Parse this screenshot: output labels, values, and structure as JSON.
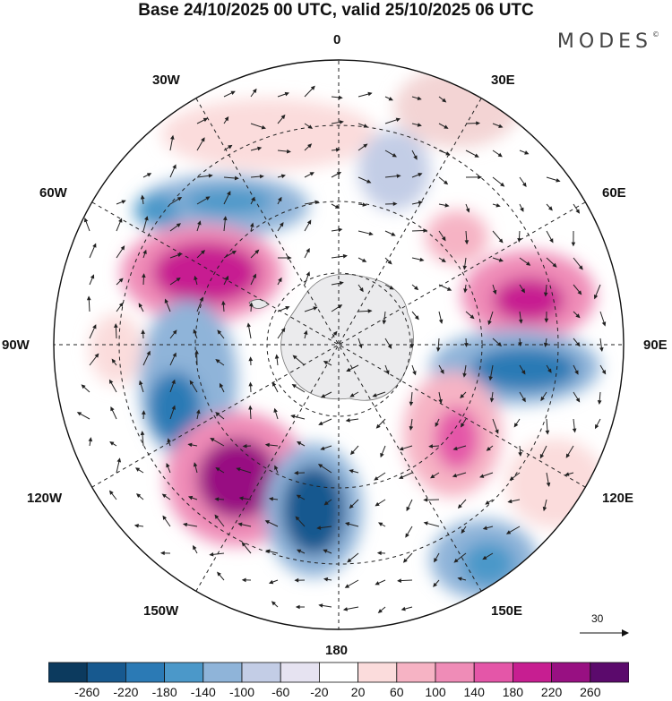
{
  "title": "Base 24/10/2025 00 UTC, valid 25/10/2025 06 UTC",
  "brand": {
    "name": "MODES",
    "symbol": "©"
  },
  "map": {
    "projection": "south-polar-stereographic",
    "longitude_labels": {
      "top": "0",
      "bottom": "180",
      "left": "90W",
      "right": "90E",
      "ul30": "30W",
      "ul60": "60W",
      "ur30": "30E",
      "ur60": "60E",
      "ll120": "120W",
      "ll150": "150W",
      "lr120": "120E",
      "lr150": "150E"
    },
    "reference_vector": {
      "label": "30"
    }
  },
  "colorbar": {
    "colors": [
      "#0c3a5e",
      "#17598f",
      "#2b7ab5",
      "#4b98c9",
      "#8fb4d9",
      "#c3cde6",
      "#e6e3f1",
      "#ffffff",
      "#fbdcdc",
      "#f6b3c4",
      "#ef8cb7",
      "#e456a8",
      "#c71e91",
      "#981082",
      "#5b0a6c"
    ],
    "tick_labels": [
      "-260",
      "-220",
      "-180",
      "-140",
      "-100",
      "-60",
      "-20",
      "20",
      "60",
      "100",
      "140",
      "180",
      "220",
      "260"
    ]
  }
}
